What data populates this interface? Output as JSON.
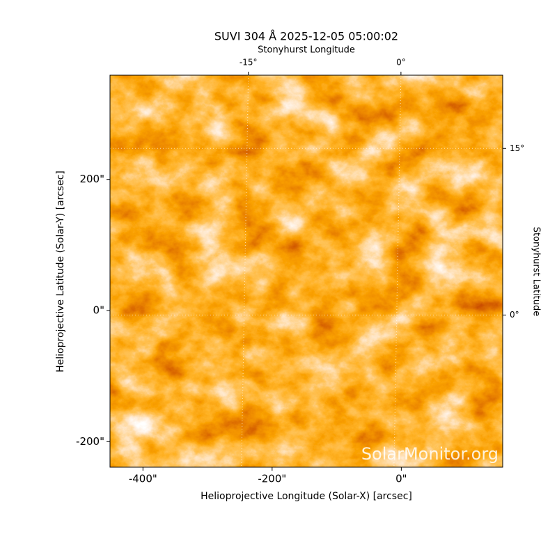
{
  "chart_data": {
    "type": "image",
    "title": "SUVI 304 Å 2025-12-05 05:00:02",
    "xlabel": "Helioprojective Longitude (Solar-X) [arcsec]",
    "ylabel": "Helioprojective Latitude (Solar-Y) [arcsec]",
    "x2label": "Stonyhurst Longitude",
    "y2label": "Stonyhurst Latitude",
    "watermark": "SolarMonitor.org",
    "xlim": [
      -451,
      157
    ],
    "ylim": [
      -239,
      359
    ],
    "xticks": [
      {
        "value": -400,
        "label": "-400\""
      },
      {
        "value": -200,
        "label": "-200\""
      },
      {
        "value": 0,
        "label": "0\""
      }
    ],
    "yticks": [
      {
        "value": -200,
        "label": "-200\""
      },
      {
        "value": 0,
        "label": "0\""
      },
      {
        "value": 200,
        "label": "200\""
      }
    ],
    "x2lim": [
      -28.6,
      10
    ],
    "x2ticks": [
      {
        "value": -15,
        "label": "-15°"
      },
      {
        "value": 0,
        "label": "0°"
      }
    ],
    "y2lim": [
      -13.7,
      21.6
    ],
    "y2ticks": [
      {
        "value": 0,
        "label": "0°"
      },
      {
        "value": 15,
        "label": "15°"
      }
    ],
    "grid": true
  }
}
